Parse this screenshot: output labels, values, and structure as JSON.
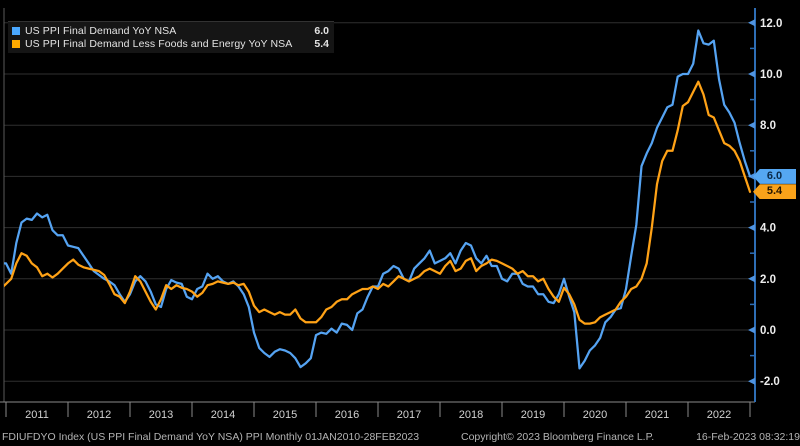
{
  "colors": {
    "background": "#000000",
    "grid": "#2f2f2f",
    "left_border": "#5a5a5a",
    "x_axis": "#8a8a8a",
    "y_axis_line": "#2e6eb5",
    "y_tick": "#4f93e0",
    "axis_label": "#ededed",
    "year_label": "#d2d2d2",
    "series_ppi": "#55a3f2",
    "series_core": "#ffa216",
    "badge_ppi_bg": "#55a7f2",
    "badge_ppi_text": "#0a2a4a",
    "badge_core_bg": "#f9a21a",
    "badge_core_text": "#241500"
  },
  "legend": {
    "items": [
      {
        "label": "US PPI Final Demand YoY NSA",
        "value": "6.0",
        "color": "#4aa8ff"
      },
      {
        "label": "US PPI Final Demand Less Foods and Energy YoY NSA",
        "value": "5.4",
        "color": "#ffaa00"
      }
    ]
  },
  "badges": [
    {
      "label": "6.0",
      "at_value": 6.0,
      "bg": "#55a7f2",
      "fg": "#0a2a4a"
    },
    {
      "label": "5.4",
      "at_value": 5.4,
      "bg": "#f9a21a",
      "fg": "#241500"
    }
  ],
  "footer": {
    "left": "FDIUFDYO Index (US PPI Final Demand YoY NSA) PPI  Monthly 01JAN2010-28FEB2023",
    "center": "Copyright© 2023 Bloomberg Finance L.P.",
    "right": "16-Feb-2023 08:32:19"
  },
  "chart_data": {
    "type": "line",
    "title": "",
    "freq": "monthly",
    "start": "2010-11",
    "end": "2023-01",
    "grid": "horizontal-only",
    "legend_position": "top-left",
    "x_axis": {
      "tick_years": [
        2011,
        2012,
        2013,
        2014,
        2015,
        2016,
        2017,
        2018,
        2019,
        2020,
        2021,
        2022,
        2023
      ],
      "year_labels": [
        "2011",
        "2012",
        "2013",
        "2014",
        "2015",
        "2016",
        "2017",
        "2018",
        "2019",
        "2020",
        "2021",
        "2022"
      ]
    },
    "y_axis": {
      "side": "right",
      "ylim": [
        -2.9,
        12.6
      ],
      "major_ticks": [
        {
          "v": 12,
          "label": "12.0"
        },
        {
          "v": 10,
          "label": "10.0"
        },
        {
          "v": 8,
          "label": "8.0"
        },
        {
          "v": 6,
          "label": "6.0",
          "hidden_behind_badge": true
        },
        {
          "v": 4,
          "label": "4.0"
        },
        {
          "v": 2,
          "label": "2.0"
        },
        {
          "v": 0,
          "label": "0.0"
        },
        {
          "v": -2,
          "label": "-2.0"
        }
      ],
      "minor_ticks": [
        11,
        9,
        7,
        5,
        3,
        1,
        -1
      ]
    },
    "series": [
      {
        "name": "US PPI Final Demand YoY NSA",
        "color": "#55a3f2",
        "last_value": 6.0,
        "values": [
          2.7,
          2.6,
          2.6,
          2.2,
          3.4,
          4.2,
          4.35,
          4.3,
          4.55,
          4.4,
          4.5,
          3.9,
          3.7,
          3.7,
          3.3,
          3.25,
          3.2,
          2.9,
          2.6,
          2.3,
          2.15,
          2.0,
          1.9,
          1.75,
          1.4,
          1.1,
          1.4,
          1.9,
          2.1,
          1.9,
          1.5,
          1.0,
          0.9,
          1.6,
          1.95,
          1.85,
          1.8,
          1.3,
          1.2,
          1.6,
          1.7,
          2.2,
          2.0,
          2.1,
          1.9,
          1.8,
          1.9,
          1.7,
          1.4,
          0.9,
          -0.1,
          -0.7,
          -0.9,
          -1.05,
          -0.85,
          -0.75,
          -0.8,
          -0.9,
          -1.1,
          -1.45,
          -1.3,
          -1.1,
          -0.2,
          -0.1,
          -0.15,
          0.05,
          -0.1,
          0.25,
          0.2,
          0.0,
          0.65,
          0.8,
          1.3,
          1.7,
          1.7,
          2.2,
          2.3,
          2.5,
          2.4,
          2.0,
          1.9,
          2.4,
          2.6,
          2.8,
          3.1,
          2.6,
          2.7,
          2.8,
          3.0,
          2.6,
          3.1,
          3.4,
          3.3,
          2.8,
          2.6,
          2.9,
          2.5,
          2.5,
          2.0,
          1.9,
          2.2,
          2.2,
          1.8,
          1.7,
          1.7,
          1.4,
          1.4,
          1.1,
          1.05,
          1.4,
          2.0,
          1.3,
          0.7,
          -1.5,
          -1.2,
          -0.8,
          -0.6,
          -0.3,
          0.3,
          0.5,
          0.8,
          0.85,
          1.6,
          2.9,
          4.1,
          6.4,
          6.9,
          7.3,
          7.9,
          8.3,
          8.7,
          8.8,
          9.9,
          10.0,
          10.0,
          10.4,
          11.7,
          11.2,
          11.15,
          11.3,
          9.8,
          8.8,
          8.5,
          8.1,
          7.3,
          6.6,
          6.0
        ]
      },
      {
        "name": "US PPI Final Demand Less Foods and Energy YoY NSA",
        "color": "#ffa216",
        "last_value": 5.4,
        "values": [
          1.5,
          1.6,
          1.8,
          2.0,
          2.6,
          3.0,
          2.9,
          2.6,
          2.45,
          2.1,
          2.2,
          2.05,
          2.2,
          2.4,
          2.6,
          2.75,
          2.55,
          2.45,
          2.4,
          2.35,
          2.3,
          2.15,
          1.8,
          1.4,
          1.3,
          1.05,
          1.5,
          2.1,
          1.9,
          1.5,
          1.1,
          0.8,
          1.2,
          1.75,
          1.6,
          1.75,
          1.65,
          1.6,
          1.5,
          1.3,
          1.45,
          1.75,
          1.8,
          1.9,
          1.85,
          1.8,
          1.85,
          1.75,
          1.8,
          1.5,
          0.95,
          0.7,
          0.8,
          0.7,
          0.6,
          0.7,
          0.6,
          0.6,
          0.8,
          0.45,
          0.3,
          0.3,
          0.3,
          0.5,
          0.8,
          0.9,
          1.1,
          1.2,
          1.2,
          1.4,
          1.5,
          1.6,
          1.6,
          1.7,
          1.6,
          1.8,
          1.7,
          1.9,
          2.1,
          2.0,
          1.9,
          2.0,
          2.1,
          2.3,
          2.4,
          2.3,
          2.2,
          2.5,
          2.7,
          2.3,
          2.4,
          2.7,
          2.8,
          2.3,
          2.5,
          2.6,
          2.75,
          2.7,
          2.6,
          2.5,
          2.4,
          2.2,
          2.3,
          2.1,
          2.1,
          1.9,
          2.0,
          1.6,
          1.3,
          1.1,
          1.65,
          1.4,
          1.0,
          0.4,
          0.25,
          0.25,
          0.3,
          0.5,
          0.6,
          0.7,
          0.8,
          1.1,
          1.3,
          1.6,
          1.7,
          2.0,
          2.6,
          4.0,
          5.7,
          6.6,
          7.0,
          7.0,
          7.8,
          8.75,
          8.9,
          9.3,
          9.7,
          9.2,
          8.4,
          8.3,
          7.8,
          7.3,
          7.2,
          7.0,
          6.6,
          6.0,
          5.4
        ]
      }
    ]
  }
}
